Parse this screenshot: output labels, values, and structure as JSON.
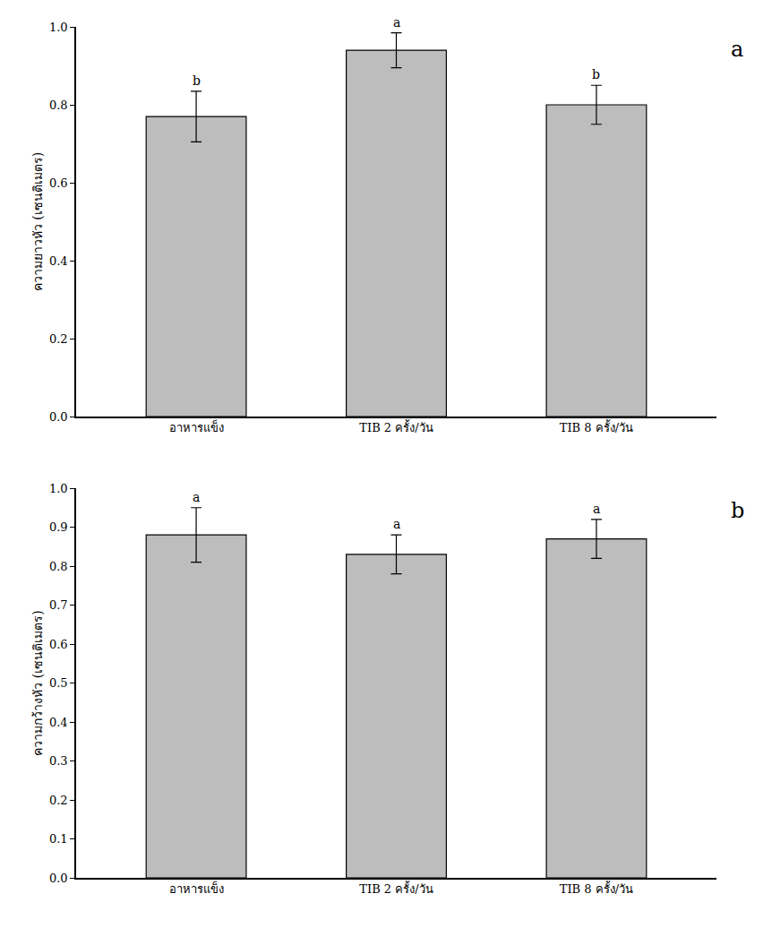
{
  "chart_data": [
    {
      "type": "bar",
      "panel_label": "a",
      "y_label": "ความยาวหัว (เซนติเมตร)",
      "categories": [
        "อาหารแข็ง",
        "TIB 2 ครั้ง/วัน",
        "TIB 8 ครั้ง/วัน"
      ],
      "values": [
        0.77,
        0.94,
        0.8
      ],
      "errors": [
        0.065,
        0.045,
        0.05
      ],
      "annotations": [
        "b",
        "a",
        "b"
      ],
      "color": "#bdbdbd",
      "ylim": [
        0,
        1.0
      ],
      "yticks": [
        {
          "value": 0,
          "label": "0.0"
        },
        0.2,
        0.4,
        0.6,
        0.8,
        {
          "value": 1.0,
          "label": "1.0"
        }
      ],
      "grid": false
    },
    {
      "type": "bar",
      "panel_label": "b",
      "y_label": "ความกว้างหัว (เซนติเมตร)",
      "categories": [
        "อาหารแข็ง",
        "TIB 2 ครั้ง/วัน",
        "TIB 8 ครั้ง/วัน"
      ],
      "values": [
        0.88,
        0.83,
        0.87
      ],
      "errors": [
        0.07,
        0.05,
        0.05
      ],
      "annotations": [
        "a",
        "a",
        "a"
      ],
      "color": "#bdbdbd",
      "ylim": [
        0,
        1.0
      ],
      "yticks": [
        {
          "value": 0,
          "label": "0.0"
        },
        0.1,
        0.2,
        0.3,
        0.4,
        0.5,
        0.6,
        0.7,
        0.8,
        0.9,
        {
          "value": 1.0,
          "label": "1.0"
        }
      ],
      "grid": false
    }
  ]
}
